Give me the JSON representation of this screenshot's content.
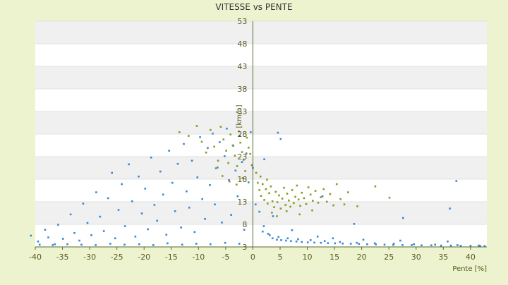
{
  "chart_data": {
    "type": "scatter",
    "title": "VITESSE vs PENTE",
    "xlabel": "Pente [%]",
    "ylabel": "[km/h]",
    "xlim": [
      -40,
      43
    ],
    "ylim": [
      3,
      53
    ],
    "xticks": [
      -40,
      -35,
      -30,
      -25,
      -20,
      -15,
      -10,
      -5,
      0,
      5,
      10,
      15,
      20,
      25,
      30,
      35,
      40
    ],
    "yticks": [
      3,
      8,
      13,
      18,
      23,
      28,
      33,
      38,
      43,
      48,
      53
    ],
    "xtick_labels": [
      "-40",
      "-35",
      "-30",
      "-25",
      "-20",
      "-15",
      "-10",
      "-5",
      "0",
      "5",
      "10",
      "15",
      "20",
      "25",
      "30",
      "35",
      "40"
    ],
    "ytick_labels": [
      "3",
      "8",
      "13",
      "18",
      "23",
      "28",
      "33",
      "38",
      "43",
      "48",
      "53"
    ],
    "grid": true,
    "legend": "none",
    "colors": {
      "plot_background": "#ffffff",
      "band": "#f0f0f0",
      "page_background": "#eef3cf",
      "axis": "#556b2f",
      "series_blue": "#3a86d4",
      "series_olive": "#8a9a1c"
    },
    "series": [
      {
        "color": "#3a86d4",
        "points": [
          [
            -40.8,
            5.5
          ],
          [
            -39.5,
            4.2
          ],
          [
            -38.2,
            6.8
          ],
          [
            -37.6,
            5.1
          ],
          [
            -36.4,
            3.6
          ],
          [
            -35.8,
            7.9
          ],
          [
            -34.9,
            4.8
          ],
          [
            -33.5,
            10.2
          ],
          [
            -32.8,
            6.1
          ],
          [
            -31.9,
            4.4
          ],
          [
            -31.2,
            12.6
          ],
          [
            -30.4,
            8.3
          ],
          [
            -29.7,
            5.6
          ],
          [
            -28.8,
            15.1
          ],
          [
            -28.1,
            9.7
          ],
          [
            -27.4,
            6.5
          ],
          [
            -26.6,
            13.8
          ],
          [
            -25.9,
            19.4
          ],
          [
            -25.3,
            4.9
          ],
          [
            -24.7,
            11.2
          ],
          [
            -24.1,
            16.9
          ],
          [
            -23.5,
            7.6
          ],
          [
            -22.8,
            21.3
          ],
          [
            -22.2,
            13.1
          ],
          [
            -21.6,
            5.3
          ],
          [
            -21.0,
            18.6
          ],
          [
            -20.4,
            10.4
          ],
          [
            -19.8,
            15.9
          ],
          [
            -19.3,
            6.9
          ],
          [
            -18.7,
            22.8
          ],
          [
            -18.1,
            12.3
          ],
          [
            -17.6,
            8.8
          ],
          [
            -17.0,
            19.7
          ],
          [
            -16.5,
            14.6
          ],
          [
            -15.9,
            5.7
          ],
          [
            -15.4,
            24.3
          ],
          [
            -14.8,
            17.2
          ],
          [
            -14.3,
            10.9
          ],
          [
            -13.8,
            21.4
          ],
          [
            -13.2,
            7.3
          ],
          [
            -12.7,
            25.8
          ],
          [
            -12.2,
            15.3
          ],
          [
            -11.7,
            11.7
          ],
          [
            -11.2,
            22.1
          ],
          [
            -10.7,
            6.3
          ],
          [
            -10.2,
            18.4
          ],
          [
            -9.7,
            27.3
          ],
          [
            -9.3,
            13.6
          ],
          [
            -8.8,
            9.2
          ],
          [
            -8.3,
            24.9
          ],
          [
            -7.9,
            16.7
          ],
          [
            -7.4,
            28.1
          ],
          [
            -7.0,
            12.4
          ],
          [
            -6.5,
            20.6
          ],
          [
            -6.1,
            26.2
          ],
          [
            -5.7,
            8.4
          ],
          [
            -5.2,
            23.1
          ],
          [
            -4.8,
            29.2
          ],
          [
            -4.4,
            17.8
          ],
          [
            -4.0,
            10.1
          ],
          [
            -3.6,
            25.4
          ],
          [
            -3.2,
            19.9
          ],
          [
            -2.8,
            14.2
          ],
          [
            -2.4,
            27.6
          ],
          [
            -2.0,
            21.8
          ],
          [
            -1.6,
            6.8
          ],
          [
            -1.2,
            23.7
          ],
          [
            -0.8,
            17.3
          ],
          [
            -0.4,
            28.4
          ],
          [
            0.0,
            20.5
          ],
          [
            -39.2,
            3.5
          ],
          [
            -36.8,
            3.4
          ],
          [
            -34.1,
            3.6
          ],
          [
            -31.5,
            3.5
          ],
          [
            -28.9,
            3.4
          ],
          [
            -26.2,
            3.7
          ],
          [
            -23.6,
            3.5
          ],
          [
            -20.9,
            3.6
          ],
          [
            -18.3,
            3.4
          ],
          [
            -15.7,
            3.8
          ],
          [
            -13.0,
            3.5
          ],
          [
            -10.4,
            3.7
          ],
          [
            -7.8,
            3.6
          ],
          [
            -5.1,
            3.9
          ],
          [
            -2.5,
            3.7
          ],
          [
            0.5,
            12.4
          ],
          [
            1.2,
            10.8
          ],
          [
            2.0,
            7.6
          ],
          [
            2.8,
            5.9
          ],
          [
            3.6,
            4.9
          ],
          [
            4.4,
            4.6
          ],
          [
            5.2,
            4.5
          ],
          [
            6.1,
            4.4
          ],
          [
            7.0,
            4.3
          ],
          [
            8.0,
            4.2
          ],
          [
            9.0,
            4.1
          ],
          [
            10.1,
            4.0
          ],
          [
            11.3,
            3.95
          ],
          [
            12.5,
            3.9
          ],
          [
            13.8,
            3.85
          ],
          [
            15.1,
            3.8
          ],
          [
            16.5,
            3.75
          ],
          [
            18.0,
            3.7
          ],
          [
            19.5,
            3.65
          ],
          [
            21.0,
            3.6
          ],
          [
            22.6,
            3.55
          ],
          [
            24.2,
            3.5
          ],
          [
            25.8,
            3.45
          ],
          [
            27.5,
            3.4
          ],
          [
            29.2,
            3.4
          ],
          [
            31.0,
            3.35
          ],
          [
            32.8,
            3.35
          ],
          [
            34.6,
            3.3
          ],
          [
            36.4,
            3.3
          ],
          [
            38.2,
            3.25
          ],
          [
            40.0,
            3.25
          ],
          [
            41.8,
            3.2
          ],
          [
            42.6,
            3.2
          ],
          [
            1.8,
            6.4
          ],
          [
            3.1,
            5.6
          ],
          [
            4.7,
            5.2
          ],
          [
            6.4,
            4.9
          ],
          [
            8.3,
            4.7
          ],
          [
            10.6,
            4.5
          ],
          [
            13.2,
            4.3
          ],
          [
            16.0,
            4.1
          ],
          [
            19.1,
            3.9
          ],
          [
            22.4,
            3.8
          ],
          [
            25.9,
            3.7
          ],
          [
            29.6,
            3.6
          ],
          [
            33.5,
            3.5
          ],
          [
            37.6,
            3.4
          ],
          [
            41.5,
            3.3
          ],
          [
            4.6,
            28.3
          ],
          [
            5.1,
            26.9
          ],
          [
            2.1,
            22.4
          ],
          [
            3.7,
            9.8
          ],
          [
            7.2,
            6.7
          ],
          [
            11.9,
            5.3
          ],
          [
            14.7,
            4.9
          ],
          [
            20.3,
            4.6
          ],
          [
            27.1,
            4.4
          ],
          [
            35.8,
            4.2
          ],
          [
            37.4,
            17.6
          ],
          [
            36.2,
            11.5
          ],
          [
            27.6,
            9.4
          ],
          [
            12.8,
            14.2
          ],
          [
            18.6,
            8.1
          ]
        ]
      },
      {
        "color": "#8a9a1c",
        "points": [
          [
            -13.5,
            28.4
          ],
          [
            -11.8,
            27.6
          ],
          [
            -10.3,
            29.8
          ],
          [
            -9.4,
            26.3
          ],
          [
            -8.6,
            23.9
          ],
          [
            -7.8,
            28.9
          ],
          [
            -7.1,
            25.2
          ],
          [
            -6.4,
            22.1
          ],
          [
            -5.9,
            29.6
          ],
          [
            -5.4,
            26.8
          ],
          [
            -4.9,
            24.3
          ],
          [
            -4.5,
            21.6
          ],
          [
            -4.1,
            27.9
          ],
          [
            -3.7,
            25.5
          ],
          [
            -3.3,
            23.2
          ],
          [
            -2.9,
            20.9
          ],
          [
            -2.6,
            28.6
          ],
          [
            -2.3,
            26.1
          ],
          [
            -2.0,
            24.0
          ],
          [
            -1.7,
            22.3
          ],
          [
            -1.4,
            19.8
          ],
          [
            -1.1,
            27.2
          ],
          [
            -0.8,
            25.0
          ],
          [
            -0.5,
            23.6
          ],
          [
            -0.2,
            21.1
          ],
          [
            -6.8,
            20.4
          ],
          [
            -5.6,
            18.7
          ],
          [
            -4.3,
            17.5
          ],
          [
            -3.0,
            16.8
          ],
          [
            -1.9,
            18.2
          ],
          [
            0.6,
            19.4
          ],
          [
            0.9,
            17.2
          ],
          [
            1.2,
            15.6
          ],
          [
            1.5,
            14.3
          ],
          [
            1.8,
            16.9
          ],
          [
            2.1,
            13.4
          ],
          [
            2.4,
            15.8
          ],
          [
            2.7,
            12.6
          ],
          [
            3.0,
            14.9
          ],
          [
            3.3,
            16.4
          ],
          [
            3.6,
            13.1
          ],
          [
            3.9,
            11.8
          ],
          [
            4.2,
            15.2
          ],
          [
            4.5,
            12.9
          ],
          [
            4.8,
            14.4
          ],
          [
            5.1,
            11.5
          ],
          [
            5.4,
            13.7
          ],
          [
            5.7,
            16.1
          ],
          [
            6.0,
            12.3
          ],
          [
            6.3,
            14.8
          ],
          [
            6.6,
            13.3
          ],
          [
            6.9,
            11.9
          ],
          [
            7.2,
            15.6
          ],
          [
            7.5,
            12.7
          ],
          [
            7.8,
            14.1
          ],
          [
            8.1,
            16.6
          ],
          [
            8.4,
            13.5
          ],
          [
            8.7,
            12.1
          ],
          [
            9.0,
            15.0
          ],
          [
            9.4,
            13.8
          ],
          [
            9.8,
            12.5
          ],
          [
            10.2,
            16.2
          ],
          [
            10.6,
            14.6
          ],
          [
            11.0,
            13.2
          ],
          [
            11.5,
            15.4
          ],
          [
            12.0,
            12.8
          ],
          [
            12.5,
            14.0
          ],
          [
            13.0,
            15.8
          ],
          [
            13.6,
            13.0
          ],
          [
            14.2,
            14.7
          ],
          [
            14.8,
            12.2
          ],
          [
            15.4,
            16.9
          ],
          [
            16.1,
            13.6
          ],
          [
            16.8,
            12.4
          ],
          [
            17.5,
            15.1
          ],
          [
            19.2,
            12.0
          ],
          [
            22.5,
            16.4
          ],
          [
            25.1,
            13.9
          ],
          [
            1.4,
            18.6
          ],
          [
            2.6,
            17.9
          ],
          [
            3.5,
            10.6
          ],
          [
            4.4,
            9.8
          ],
          [
            6.2,
            10.9
          ],
          [
            8.6,
            10.2
          ],
          [
            10.9,
            11.1
          ]
        ]
      }
    ]
  }
}
